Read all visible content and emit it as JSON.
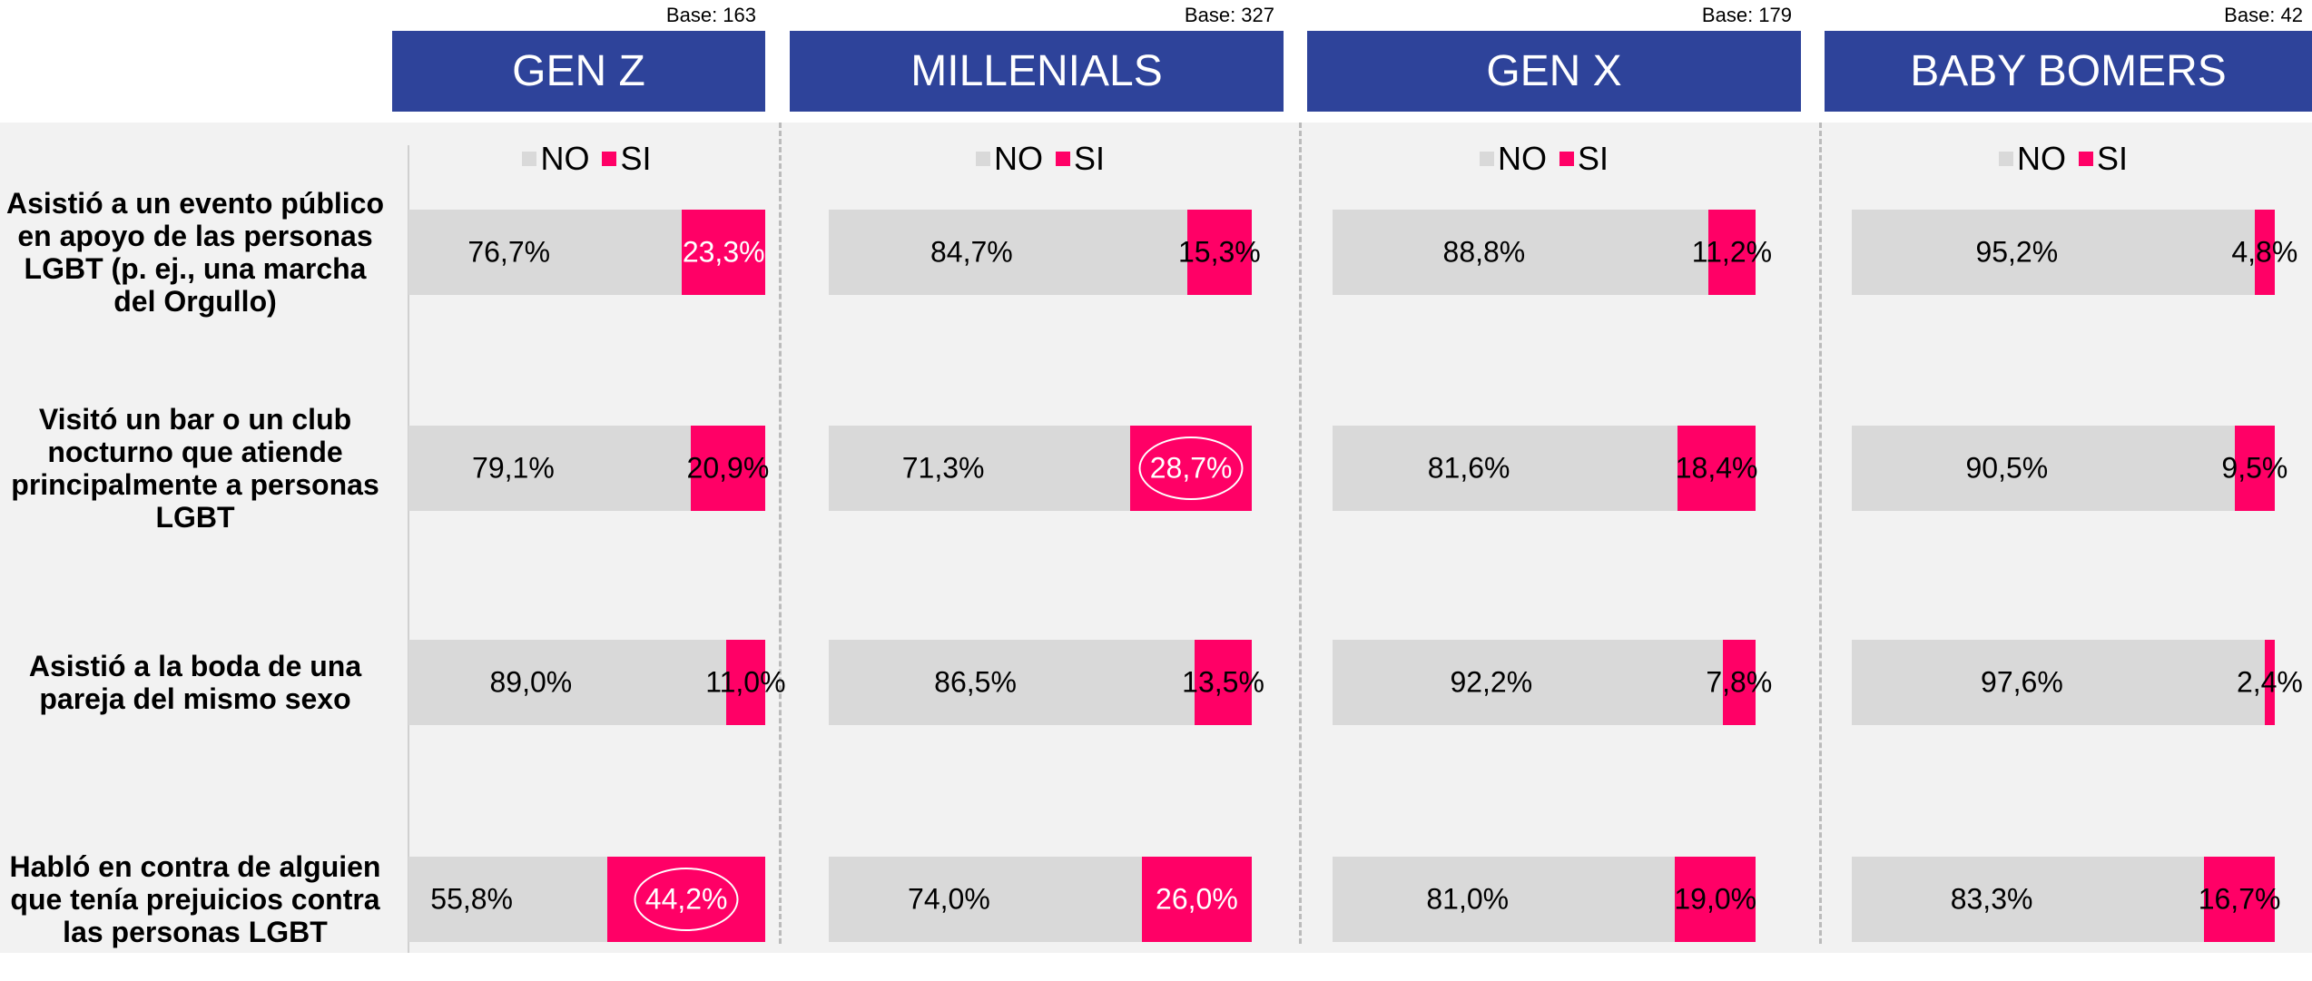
{
  "chart_data": [
    {
      "type": "bar",
      "stacked": true,
      "orientation": "horizontal",
      "title": "GEN Z",
      "base": "Base: 163",
      "xlim": [
        0,
        100
      ],
      "categories": [
        "Asistió a un evento público en apoyo de las personas LGBT (p. ej., una marcha del Orgullo)",
        "Visitó un bar o un club nocturno que atiende principalmente a personas LGBT",
        "Asistió a la boda de una pareja del mismo sexo",
        "Habló en contra de alguien que tenía prejuicios contra las personas LGBT"
      ],
      "series": [
        {
          "name": "NO",
          "color": "#d9d9d9",
          "values": [
            76.7,
            79.1,
            89.0,
            55.8
          ],
          "value_labels": [
            "76,7%",
            "79,1%",
            "89,0%",
            "55,8%"
          ]
        },
        {
          "name": "SI",
          "color": "#ff0066",
          "values": [
            23.3,
            20.9,
            11.0,
            44.2
          ],
          "value_labels": [
            "23,3%",
            "20,9%",
            "11,0%",
            "44,2%"
          ],
          "circled": [
            false,
            false,
            false,
            true
          ]
        }
      ]
    },
    {
      "type": "bar",
      "stacked": true,
      "orientation": "horizontal",
      "title": "MILLENIALS",
      "base": "Base: 327",
      "xlim": [
        0,
        100
      ],
      "series": [
        {
          "name": "NO",
          "color": "#d9d9d9",
          "values": [
            84.7,
            71.3,
            86.5,
            74.0
          ],
          "value_labels": [
            "84,7%",
            "71,3%",
            "86,5%",
            "74,0%"
          ]
        },
        {
          "name": "SI",
          "color": "#ff0066",
          "values": [
            15.3,
            28.7,
            13.5,
            26.0
          ],
          "value_labels": [
            "15,3%",
            "28,7%",
            "13,5%",
            "26,0%"
          ],
          "circled": [
            false,
            true,
            false,
            false
          ]
        }
      ]
    },
    {
      "type": "bar",
      "stacked": true,
      "orientation": "horizontal",
      "title": "GEN X",
      "base": "Base: 179",
      "xlim": [
        0,
        100
      ],
      "series": [
        {
          "name": "NO",
          "color": "#d9d9d9",
          "values": [
            88.8,
            81.6,
            92.2,
            81.0
          ],
          "value_labels": [
            "88,8%",
            "81,6%",
            "92,2%",
            "81,0%"
          ]
        },
        {
          "name": "SI",
          "color": "#ff0066",
          "values": [
            11.2,
            18.4,
            7.8,
            19.0
          ],
          "value_labels": [
            "11,2%",
            "18,4%",
            "7,8%",
            "19,0%"
          ],
          "circled": [
            false,
            false,
            false,
            false
          ]
        }
      ]
    },
    {
      "type": "bar",
      "stacked": true,
      "orientation": "horizontal",
      "title": "BABY BOMERS",
      "base": "Base: 42",
      "xlim": [
        0,
        100
      ],
      "series": [
        {
          "name": "NO",
          "color": "#d9d9d9",
          "values": [
            95.2,
            90.5,
            97.6,
            83.3
          ],
          "value_labels": [
            "95,2%",
            "90,5%",
            "97,6%",
            "83,3%"
          ]
        },
        {
          "name": "SI",
          "color": "#ff0066",
          "values": [
            4.8,
            9.5,
            2.4,
            16.7
          ],
          "value_labels": [
            "4,8%",
            "9,5%",
            "2,4%",
            "16,7%"
          ],
          "circled": [
            false,
            false,
            false,
            false
          ]
        }
      ]
    }
  ]
}
